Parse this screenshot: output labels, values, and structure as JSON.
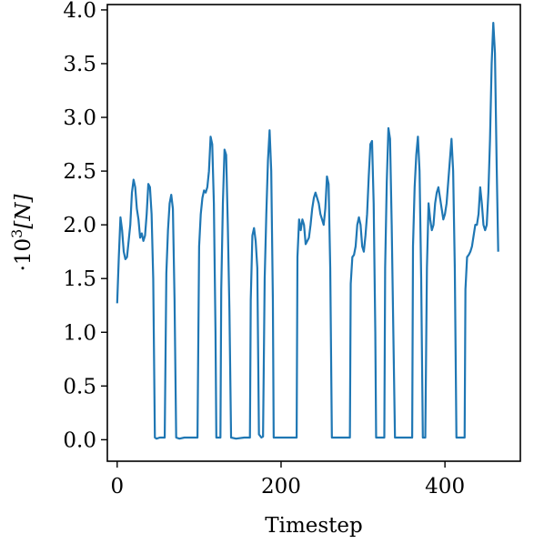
{
  "chart_data": {
    "type": "line",
    "title": "",
    "xlabel": "Timestep",
    "ylabel": "·10³[N]",
    "ylabel_parts": {
      "prefix": "·10",
      "exp": "3",
      "unit": "[N]"
    },
    "xlim": [
      -12,
      492
    ],
    "ylim": [
      -0.2,
      4.05
    ],
    "grid": false,
    "legend": "none",
    "x_ticks": [
      0,
      200,
      400
    ],
    "x_tick_labels": [
      "0",
      "200",
      "400"
    ],
    "y_ticks": [
      0,
      0.5,
      1,
      1.5,
      2,
      2.5,
      3,
      3.5,
      4
    ],
    "y_tick_labels": [
      "0.0",
      "0.5",
      "1.0",
      "1.5",
      "2.0",
      "2.5",
      "3.0",
      "3.5",
      "4.0"
    ],
    "series": [
      {
        "color": "#1f77b4",
        "points": [
          [
            0,
            1.27
          ],
          [
            2,
            1.7
          ],
          [
            4,
            2.07
          ],
          [
            6,
            1.95
          ],
          [
            8,
            1.75
          ],
          [
            10,
            1.68
          ],
          [
            12,
            1.7
          ],
          [
            14,
            1.85
          ],
          [
            16,
            2.0
          ],
          [
            18,
            2.3
          ],
          [
            20,
            2.42
          ],
          [
            22,
            2.35
          ],
          [
            24,
            2.15
          ],
          [
            26,
            2.05
          ],
          [
            28,
            1.88
          ],
          [
            30,
            1.92
          ],
          [
            32,
            1.85
          ],
          [
            34,
            1.9
          ],
          [
            36,
            2.1
          ],
          [
            38,
            2.38
          ],
          [
            40,
            2.35
          ],
          [
            42,
            2.1
          ],
          [
            44,
            1.5
          ],
          [
            46,
            0.02
          ],
          [
            48,
            0.01
          ],
          [
            52,
            0.02
          ],
          [
            56,
            0.02
          ],
          [
            58,
            0.02
          ],
          [
            60,
            1.55
          ],
          [
            62,
            1.95
          ],
          [
            64,
            2.2
          ],
          [
            66,
            2.28
          ],
          [
            68,
            2.15
          ],
          [
            70,
            1.3
          ],
          [
            72,
            0.02
          ],
          [
            76,
            0.01
          ],
          [
            82,
            0.02
          ],
          [
            90,
            0.02
          ],
          [
            98,
            0.02
          ],
          [
            100,
            1.8
          ],
          [
            102,
            2.1
          ],
          [
            104,
            2.25
          ],
          [
            106,
            2.32
          ],
          [
            108,
            2.3
          ],
          [
            110,
            2.35
          ],
          [
            112,
            2.5
          ],
          [
            114,
            2.82
          ],
          [
            116,
            2.75
          ],
          [
            118,
            2.2
          ],
          [
            120,
            1.0
          ],
          [
            121,
            0.02
          ],
          [
            124,
            0.02
          ],
          [
            126,
            0.02
          ],
          [
            127,
            1.4
          ],
          [
            129,
            2.2
          ],
          [
            131,
            2.7
          ],
          [
            133,
            2.65
          ],
          [
            135,
            2.0
          ],
          [
            137,
            1.2
          ],
          [
            139,
            0.02
          ],
          [
            145,
            0.01
          ],
          [
            155,
            0.02
          ],
          [
            162,
            0.02
          ],
          [
            163,
            1.3
          ],
          [
            165,
            1.9
          ],
          [
            167,
            1.97
          ],
          [
            169,
            1.85
          ],
          [
            171,
            1.6
          ],
          [
            173,
            0.05
          ],
          [
            176,
            0.02
          ],
          [
            178,
            0.03
          ],
          [
            180,
            1.5
          ],
          [
            182,
            2.1
          ],
          [
            184,
            2.6
          ],
          [
            186,
            2.88
          ],
          [
            188,
            2.5
          ],
          [
            190,
            1.3
          ],
          [
            191,
            0.02
          ],
          [
            200,
            0.02
          ],
          [
            210,
            0.02
          ],
          [
            219,
            0.02
          ],
          [
            220,
            1.7
          ],
          [
            222,
            2.05
          ],
          [
            224,
            1.95
          ],
          [
            226,
            2.05
          ],
          [
            228,
            2.0
          ],
          [
            230,
            1.82
          ],
          [
            232,
            1.85
          ],
          [
            234,
            1.88
          ],
          [
            236,
            2.0
          ],
          [
            238,
            2.15
          ],
          [
            240,
            2.25
          ],
          [
            242,
            2.3
          ],
          [
            244,
            2.25
          ],
          [
            246,
            2.2
          ],
          [
            248,
            2.1
          ],
          [
            250,
            2.05
          ],
          [
            252,
            2.0
          ],
          [
            254,
            2.15
          ],
          [
            256,
            2.45
          ],
          [
            258,
            2.38
          ],
          [
            260,
            1.6
          ],
          [
            262,
            0.02
          ],
          [
            270,
            0.02
          ],
          [
            280,
            0.02
          ],
          [
            284,
            0.02
          ],
          [
            285,
            1.45
          ],
          [
            287,
            1.7
          ],
          [
            289,
            1.72
          ],
          [
            291,
            1.8
          ],
          [
            293,
            2.0
          ],
          [
            295,
            2.07
          ],
          [
            297,
            2.0
          ],
          [
            299,
            1.8
          ],
          [
            301,
            1.75
          ],
          [
            303,
            1.9
          ],
          [
            305,
            2.1
          ],
          [
            307,
            2.45
          ],
          [
            309,
            2.75
          ],
          [
            311,
            2.78
          ],
          [
            313,
            2.2
          ],
          [
            315,
            1.0
          ],
          [
            316,
            0.02
          ],
          [
            322,
            0.02
          ],
          [
            326,
            0.02
          ],
          [
            327,
            1.6
          ],
          [
            329,
            2.4
          ],
          [
            331,
            2.9
          ],
          [
            333,
            2.8
          ],
          [
            335,
            2.0
          ],
          [
            337,
            1.0
          ],
          [
            339,
            0.02
          ],
          [
            345,
            0.02
          ],
          [
            355,
            0.02
          ],
          [
            360,
            0.02
          ],
          [
            361,
            1.8
          ],
          [
            363,
            2.35
          ],
          [
            365,
            2.65
          ],
          [
            367,
            2.82
          ],
          [
            369,
            2.5
          ],
          [
            371,
            1.5
          ],
          [
            373,
            0.02
          ],
          [
            376,
            0.02
          ],
          [
            378,
            1.6
          ],
          [
            380,
            2.2
          ],
          [
            382,
            2.05
          ],
          [
            384,
            1.95
          ],
          [
            386,
            2.0
          ],
          [
            388,
            2.2
          ],
          [
            390,
            2.3
          ],
          [
            392,
            2.35
          ],
          [
            394,
            2.25
          ],
          [
            396,
            2.15
          ],
          [
            398,
            2.05
          ],
          [
            400,
            2.1
          ],
          [
            402,
            2.2
          ],
          [
            404,
            2.4
          ],
          [
            406,
            2.6
          ],
          [
            408,
            2.8
          ],
          [
            410,
            2.5
          ],
          [
            412,
            1.6
          ],
          [
            414,
            0.02
          ],
          [
            420,
            0.02
          ],
          [
            424,
            0.02
          ],
          [
            425,
            1.4
          ],
          [
            427,
            1.7
          ],
          [
            429,
            1.72
          ],
          [
            431,
            1.75
          ],
          [
            433,
            1.8
          ],
          [
            435,
            1.9
          ],
          [
            437,
            2.0
          ],
          [
            439,
            2.0
          ],
          [
            441,
            2.1
          ],
          [
            443,
            2.35
          ],
          [
            445,
            2.2
          ],
          [
            447,
            2.0
          ],
          [
            449,
            1.95
          ],
          [
            451,
            2.0
          ],
          [
            453,
            2.3
          ],
          [
            455,
            2.8
          ],
          [
            457,
            3.5
          ],
          [
            459,
            3.88
          ],
          [
            461,
            3.6
          ],
          [
            463,
            2.6
          ],
          [
            465,
            1.75
          ]
        ]
      }
    ]
  }
}
